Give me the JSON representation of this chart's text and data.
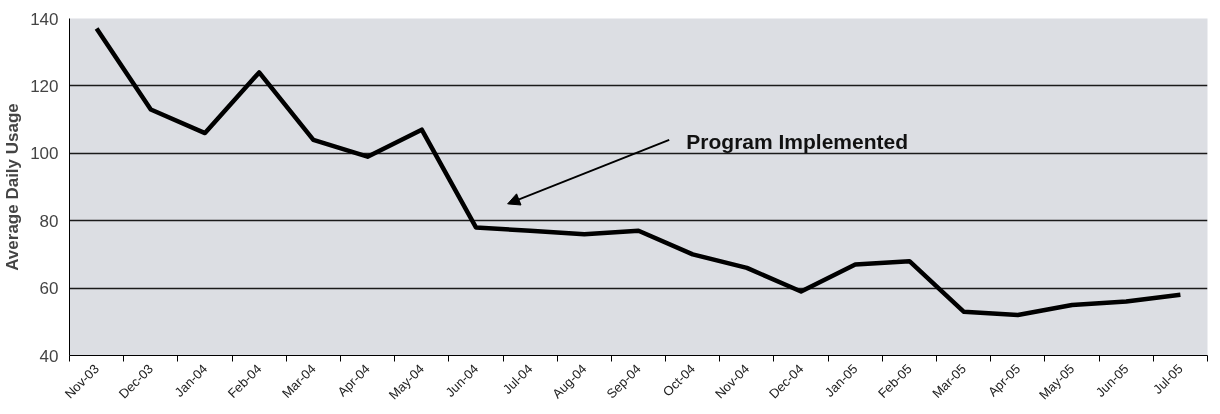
{
  "chart_data": {
    "type": "line",
    "ylabel": "Average Daily Usage",
    "categories": [
      "Nov-03",
      "Dec-03",
      "Jan-04",
      "Feb-04",
      "Mar-04",
      "Apr-04",
      "May-04",
      "Jun-04",
      "Jul-04",
      "Aug-04",
      "Sep-04",
      "Oct-04",
      "Nov-04",
      "Dec-04",
      "Jan-05",
      "Feb-05",
      "Mar-05",
      "Apr-05",
      "May-05",
      "Jun-05",
      "Jul-05"
    ],
    "series": [
      {
        "color": "#000000",
        "values": [
          137,
          113,
          106,
          124,
          104,
          99,
          107,
          78,
          77,
          76,
          77,
          70,
          66,
          59,
          67,
          68,
          53,
          52,
          55,
          56,
          58
        ]
      }
    ],
    "ylim": [
      40,
      140
    ],
    "yticks": [
      40,
      60,
      80,
      100,
      120,
      140
    ],
    "grid": "y",
    "marker": "none",
    "line_style": "solid",
    "annotations": [
      "Program Implemented"
    ]
  }
}
